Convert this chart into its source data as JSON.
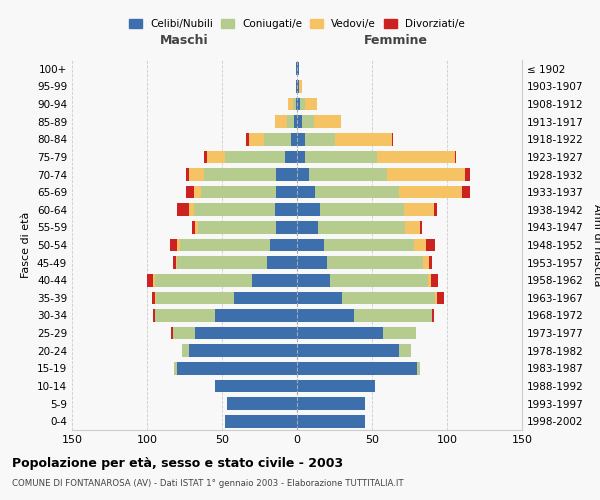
{
  "age_groups": [
    "0-4",
    "5-9",
    "10-14",
    "15-19",
    "20-24",
    "25-29",
    "30-34",
    "35-39",
    "40-44",
    "45-49",
    "50-54",
    "55-59",
    "60-64",
    "65-69",
    "70-74",
    "75-79",
    "80-84",
    "85-89",
    "90-94",
    "95-99",
    "100+"
  ],
  "birth_years": [
    "1998-2002",
    "1993-1997",
    "1988-1992",
    "1983-1987",
    "1978-1982",
    "1973-1977",
    "1968-1972",
    "1963-1967",
    "1958-1962",
    "1953-1957",
    "1948-1952",
    "1943-1947",
    "1938-1942",
    "1933-1937",
    "1928-1932",
    "1923-1927",
    "1918-1922",
    "1913-1917",
    "1908-1912",
    "1903-1907",
    "≤ 1902"
  ],
  "colors": {
    "celibi": "#3d6fad",
    "coniugati": "#b5cc8e",
    "vedovi": "#f5c264",
    "divorziati": "#cc2222"
  },
  "legend_labels": [
    "Celibi/Nubili",
    "Coniugati/e",
    "Vedovi/e",
    "Divorziati/e"
  ],
  "maschi": {
    "celibi": [
      48,
      47,
      55,
      80,
      72,
      68,
      55,
      42,
      30,
      20,
      18,
      14,
      15,
      14,
      14,
      8,
      4,
      2,
      1,
      1,
      1
    ],
    "coniugati": [
      0,
      0,
      0,
      2,
      5,
      15,
      40,
      52,
      65,
      60,
      60,
      52,
      54,
      50,
      48,
      40,
      18,
      5,
      2,
      0,
      0
    ],
    "vedovi": [
      0,
      0,
      0,
      0,
      0,
      0,
      0,
      1,
      1,
      1,
      2,
      2,
      3,
      5,
      10,
      12,
      10,
      8,
      3,
      0,
      0
    ],
    "divorziati": [
      0,
      0,
      0,
      0,
      0,
      1,
      1,
      2,
      4,
      2,
      5,
      2,
      8,
      5,
      2,
      2,
      2,
      0,
      0,
      0,
      0
    ]
  },
  "femmine": {
    "celibi": [
      45,
      45,
      52,
      80,
      68,
      57,
      38,
      30,
      22,
      20,
      18,
      14,
      15,
      12,
      8,
      5,
      5,
      3,
      2,
      1,
      1
    ],
    "coniugati": [
      0,
      0,
      0,
      2,
      8,
      22,
      52,
      62,
      65,
      64,
      60,
      58,
      56,
      56,
      52,
      48,
      20,
      8,
      3,
      0,
      0
    ],
    "vedovi": [
      0,
      0,
      0,
      0,
      0,
      0,
      0,
      1,
      2,
      4,
      8,
      10,
      20,
      42,
      52,
      52,
      38,
      18,
      8,
      2,
      0
    ],
    "divorziati": [
      0,
      0,
      0,
      0,
      0,
      0,
      1,
      5,
      5,
      2,
      6,
      1,
      2,
      5,
      3,
      1,
      1,
      0,
      0,
      0,
      0
    ]
  },
  "xlim": 150,
  "title": "Popolazione per età, sesso e stato civile - 2003",
  "subtitle": "COMUNE DI FONTANAROSA (AV) - Dati ISTAT 1° gennaio 2003 - Elaborazione TUTTITALIA.IT",
  "xlabel_left": "Maschi",
  "xlabel_right": "Femmine",
  "ylabel_left": "Fasce di età",
  "ylabel_right": "Anni di nascita",
  "bg_color": "#f8f8f8",
  "grid_color": "#cccccc"
}
